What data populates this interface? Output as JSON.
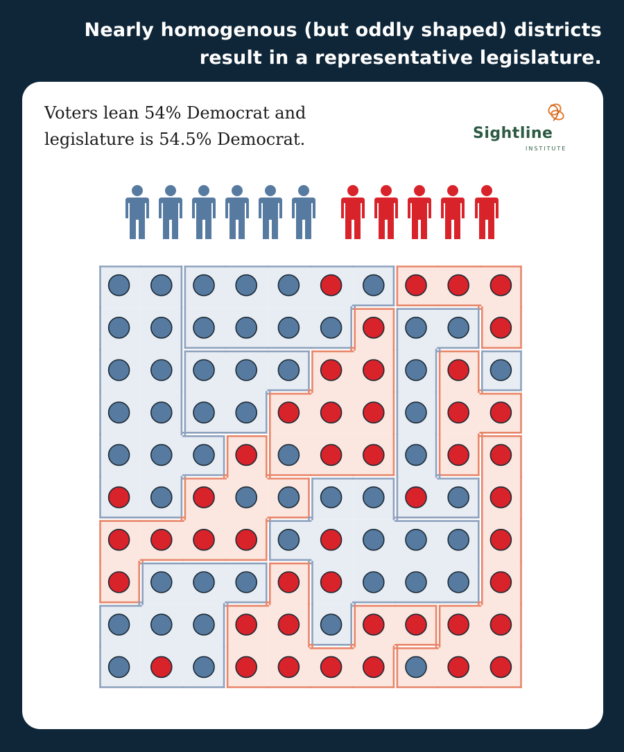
{
  "headline": {
    "line1": "Nearly homogenous (but oddly shaped) districts",
    "line2": "result in a representative legislature."
  },
  "subtitle": {
    "line1": "Voters lean 54% Democrat and",
    "line2": "legislature is 54.5% Democrat."
  },
  "logo": {
    "name": "Sightline",
    "sub": "INSTITUTE",
    "icon": "sightline-knot-icon"
  },
  "colors": {
    "background": "#0f2638",
    "blue": "#577ba0",
    "red": "#d8232a",
    "blue_fill": "#e8edf4",
    "blue_border": "#8ea1bd",
    "red_fill": "#fbe7df",
    "red_border": "#e8866a"
  },
  "legislators": [
    "D",
    "D",
    "D",
    "D",
    "D",
    "D",
    "R",
    "R",
    "R",
    "R",
    "R"
  ],
  "voter_grid": [
    "BBBBBRBRRR",
    "BBBBBBRBBR",
    "BBBBBRRBRB",
    "BBBBRRRBRR",
    "BBBRBRRBRR",
    "RBRBBBBRBR",
    "RRRRBRBBBR",
    "RBBBRRBBBR",
    "BBBRRBRRRR",
    "BRBRRRRBRR"
  ],
  "districts": [
    {
      "party": "D",
      "cells": [
        [
          0,
          0
        ],
        [
          0,
          1
        ],
        [
          1,
          0
        ],
        [
          1,
          1
        ],
        [
          2,
          0
        ],
        [
          2,
          1
        ],
        [
          3,
          0
        ],
        [
          3,
          1
        ],
        [
          4,
          0
        ],
        [
          4,
          1
        ],
        [
          4,
          2
        ],
        [
          5,
          0
        ],
        [
          5,
          1
        ]
      ]
    },
    {
      "party": "D",
      "cells": [
        [
          0,
          2
        ],
        [
          0,
          3
        ],
        [
          0,
          4
        ],
        [
          0,
          5
        ],
        [
          0,
          6
        ],
        [
          1,
          2
        ],
        [
          1,
          3
        ],
        [
          1,
          4
        ],
        [
          1,
          5
        ]
      ]
    },
    {
      "party": "D",
      "cells": [
        [
          2,
          2
        ],
        [
          2,
          3
        ],
        [
          2,
          4
        ],
        [
          3,
          2
        ],
        [
          3,
          3
        ]
      ]
    },
    {
      "party": "R",
      "cells": [
        [
          1,
          6
        ],
        [
          2,
          5
        ],
        [
          2,
          6
        ],
        [
          3,
          4
        ],
        [
          3,
          5
        ],
        [
          3,
          6
        ],
        [
          4,
          4
        ],
        [
          4,
          5
        ],
        [
          4,
          6
        ]
      ]
    },
    {
      "party": "R",
      "cells": [
        [
          0,
          7
        ],
        [
          0,
          8
        ],
        [
          0,
          9
        ],
        [
          1,
          9
        ],
        [
          2,
          8
        ],
        [
          3,
          8
        ],
        [
          3,
          9
        ],
        [
          4,
          8
        ]
      ]
    },
    {
      "party": "D",
      "cells": [
        [
          1,
          7
        ],
        [
          1,
          8
        ],
        [
          2,
          7
        ],
        [
          3,
          7
        ],
        [
          4,
          7
        ],
        [
          5,
          7
        ],
        [
          5,
          8
        ],
        [
          2,
          9
        ]
      ]
    },
    {
      "party": "R",
      "cells": [
        [
          4,
          3
        ],
        [
          5,
          2
        ],
        [
          5,
          3
        ],
        [
          5,
          4
        ],
        [
          6,
          0
        ],
        [
          6,
          1
        ],
        [
          6,
          2
        ],
        [
          6,
          3
        ],
        [
          7,
          0
        ]
      ]
    },
    {
      "party": "D",
      "cells": [
        [
          5,
          5
        ],
        [
          5,
          6
        ],
        [
          6,
          4
        ],
        [
          6,
          5
        ],
        [
          7,
          5
        ],
        [
          7,
          6
        ],
        [
          7,
          7
        ],
        [
          7,
          8
        ],
        [
          8,
          5
        ],
        [
          6,
          6
        ],
        [
          6,
          7
        ],
        [
          6,
          8
        ]
      ]
    },
    {
      "party": "R",
      "cells": [
        [
          4,
          9
        ],
        [
          5,
          9
        ],
        [
          6,
          9
        ],
        [
          7,
          9
        ],
        [
          8,
          8
        ],
        [
          8,
          9
        ],
        [
          9,
          8
        ],
        [
          9,
          9
        ],
        [
          9,
          7
        ]
      ]
    },
    {
      "party": "D",
      "cells": [
        [
          7,
          1
        ],
        [
          7,
          2
        ],
        [
          7,
          3
        ],
        [
          8,
          0
        ],
        [
          8,
          1
        ],
        [
          8,
          2
        ],
        [
          9,
          0
        ],
        [
          9,
          1
        ],
        [
          9,
          2
        ]
      ]
    },
    {
      "party": "R",
      "cells": [
        [
          7,
          4
        ],
        [
          8,
          3
        ],
        [
          8,
          4
        ],
        [
          8,
          6
        ],
        [
          8,
          7
        ],
        [
          9,
          3
        ],
        [
          9,
          4
        ],
        [
          9,
          5
        ],
        [
          9,
          6
        ]
      ]
    }
  ]
}
